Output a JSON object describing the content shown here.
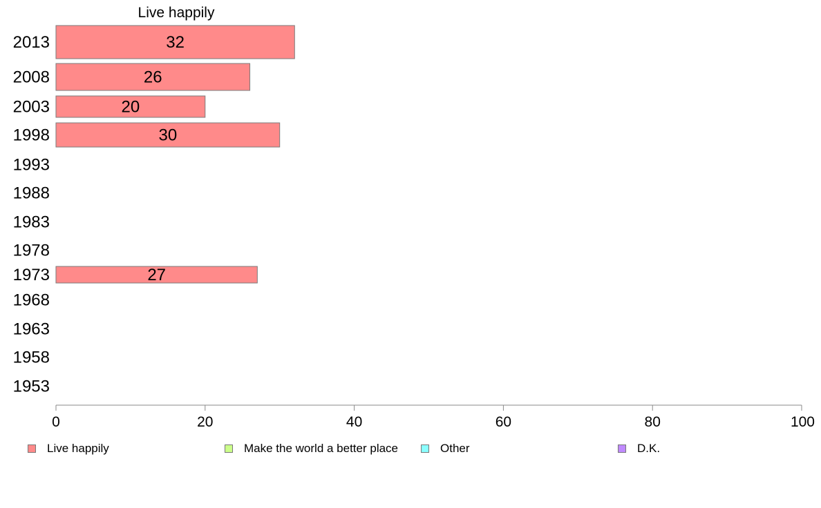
{
  "chart_data": {
    "type": "bar",
    "orientation": "horizontal",
    "title": "Live happily",
    "categories": [
      "2013",
      "2008",
      "2003",
      "1998",
      "1993",
      "1988",
      "1983",
      "1978",
      "1973",
      "1968",
      "1963",
      "1958",
      "1953"
    ],
    "series": [
      {
        "name": "Live happily",
        "color": "#FF8A8A",
        "values": [
          32,
          26,
          20,
          30,
          null,
          null,
          null,
          null,
          27,
          null,
          null,
          null,
          null
        ]
      }
    ],
    "xlim": [
      0,
      100
    ],
    "xticks": [
      0,
      20,
      40,
      60,
      80,
      100
    ],
    "grid": false,
    "legend_position": "bottom"
  },
  "legend": [
    {
      "label": "Live happily",
      "color": "#FF8A8A"
    },
    {
      "label": "Make the world a better place",
      "color": "#CCFF8A"
    },
    {
      "label": "Other",
      "color": "#8AFFFF"
    },
    {
      "label": "D.K.",
      "color": "#C08AFF"
    }
  ]
}
